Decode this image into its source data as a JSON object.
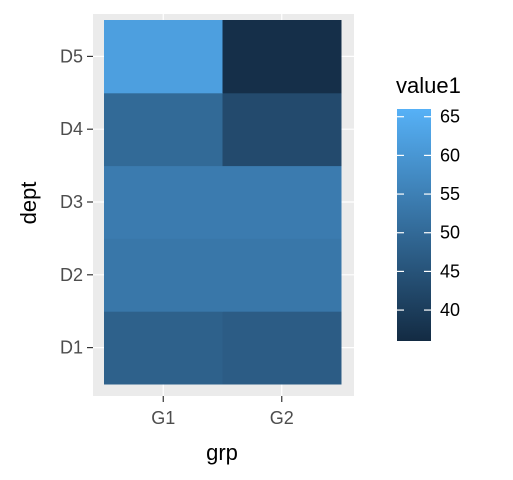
{
  "chart_data": {
    "type": "heatmap",
    "x_categories": [
      "G1",
      "G2"
    ],
    "y_categories": [
      "D1",
      "D2",
      "D3",
      "D4",
      "D5"
    ],
    "xlabel": "grp",
    "ylabel": "dept",
    "legend": {
      "title": "value1",
      "placement": "right",
      "ticks": [
        40,
        45,
        50,
        55,
        60,
        65
      ],
      "range": [
        36,
        66
      ]
    },
    "cells": [
      {
        "x": "G1",
        "y": "D1",
        "value": 48
      },
      {
        "x": "G2",
        "y": "D1",
        "value": 47
      },
      {
        "x": "G1",
        "y": "D2",
        "value": 53
      },
      {
        "x": "G2",
        "y": "D2",
        "value": 53
      },
      {
        "x": "G1",
        "y": "D3",
        "value": 54
      },
      {
        "x": "G2",
        "y": "D3",
        "value": 54
      },
      {
        "x": "G1",
        "y": "D4",
        "value": 50
      },
      {
        "x": "G2",
        "y": "D4",
        "value": 43
      },
      {
        "x": "G1",
        "y": "D5",
        "value": 62
      },
      {
        "x": "G2",
        "y": "D5",
        "value": 37
      }
    ],
    "color_low": "#132b43",
    "color_high": "#56b1f7",
    "panel_background": "#ebebeb",
    "grid": true
  }
}
